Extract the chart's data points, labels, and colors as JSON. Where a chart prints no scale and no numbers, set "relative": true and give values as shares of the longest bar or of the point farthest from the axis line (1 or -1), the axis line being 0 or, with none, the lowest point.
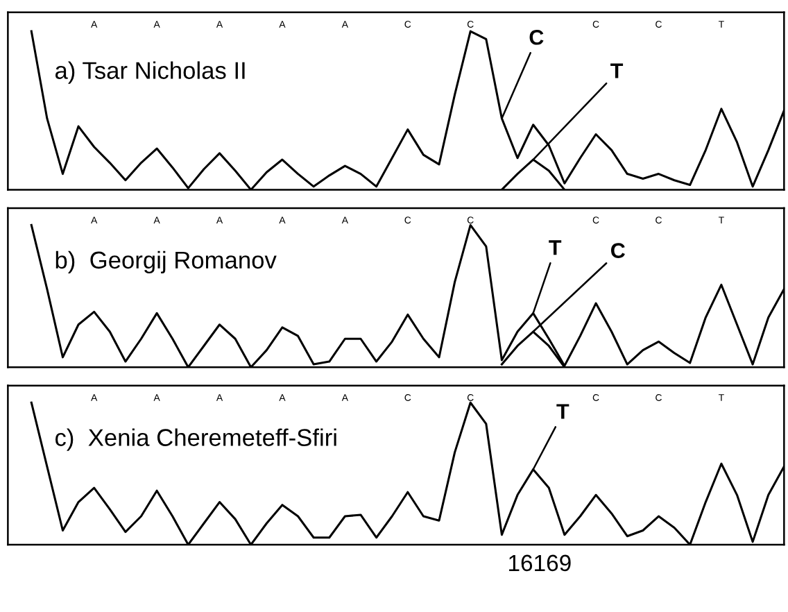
{
  "chart_data": [
    {
      "type": "line",
      "title": "a) Tsar Nicholas II",
      "relative": true,
      "tick_labels": "x",
      "grid": false,
      "legend": false,
      "categories": [
        null,
        null,
        null,
        null,
        "A",
        null,
        null,
        null,
        "A",
        null,
        null,
        null,
        "A",
        null,
        null,
        null,
        "A",
        null,
        null,
        null,
        "A",
        null,
        null,
        null,
        "C",
        null,
        null,
        null,
        "C",
        null,
        null,
        null,
        null,
        null,
        null,
        null,
        "C",
        null,
        null,
        null,
        "C",
        null,
        null,
        null,
        "T",
        null,
        null,
        null,
        null
      ],
      "series": [
        {
          "name": "C",
          "color": "#000000",
          "values": [
            1,
            0.45,
            0.1,
            0.4,
            0.27,
            0.17,
            0.06,
            0.17,
            0.26,
            0.14,
            0.01,
            0.13,
            0.23,
            0.12,
            0,
            0.11,
            0.19,
            0.1,
            0.02,
            0.09,
            0.15,
            0.1,
            0.02,
            0.2,
            0.38,
            0.22,
            0.16,
            0.6,
            1,
            0.95,
            0.45,
            0.2,
            0.41,
            0.28,
            0.04,
            0.2,
            0.35,
            0.25,
            0.1,
            0.07,
            0.1,
            0.06,
            0.03,
            0.25,
            0.51,
            0.3,
            0.02,
            0.25,
            0.5
          ]
        },
        {
          "name": "T",
          "color": "#000000",
          "values": [
            null,
            null,
            null,
            null,
            null,
            null,
            null,
            null,
            null,
            null,
            null,
            null,
            null,
            null,
            null,
            null,
            null,
            null,
            null,
            null,
            null,
            null,
            null,
            null,
            null,
            null,
            null,
            null,
            null,
            null,
            0,
            0.1,
            0.19,
            0.12,
            0,
            null,
            null,
            null,
            null,
            null,
            null,
            null,
            null,
            null,
            null,
            null,
            null,
            null,
            null
          ]
        }
      ]
    },
    {
      "type": "line",
      "title": "b)  Georgij Romanov",
      "relative": true,
      "tick_labels": "x",
      "grid": false,
      "legend": false,
      "categories": [
        null,
        null,
        null,
        null,
        "A",
        null,
        null,
        null,
        "A",
        null,
        null,
        null,
        "A",
        null,
        null,
        null,
        "A",
        null,
        null,
        null,
        "A",
        null,
        null,
        null,
        "C",
        null,
        null,
        null,
        "C",
        null,
        null,
        null,
        null,
        null,
        null,
        null,
        "C",
        null,
        null,
        null,
        "C",
        null,
        null,
        null,
        "T",
        null,
        null,
        null,
        null
      ],
      "series": [
        {
          "name": "T",
          "color": "#000000",
          "values": [
            1,
            0.55,
            0.07,
            0.3,
            0.39,
            0.25,
            0.04,
            0.2,
            0.38,
            0.2,
            0,
            0.15,
            0.3,
            0.2,
            0,
            0.12,
            0.28,
            0.22,
            0.02,
            0.04,
            0.2,
            0.2,
            0.04,
            0.18,
            0.37,
            0.2,
            0.07,
            0.6,
            1,
            0.85,
            0.05,
            0.25,
            0.38,
            0.2,
            0.01,
            0.22,
            0.45,
            0.25,
            0.02,
            0.12,
            0.18,
            0.1,
            0.03,
            0.35,
            0.58,
            0.3,
            0.02,
            0.35,
            0.55
          ]
        },
        {
          "name": "C",
          "color": "#000000",
          "values": [
            null,
            null,
            null,
            null,
            null,
            null,
            null,
            null,
            null,
            null,
            null,
            null,
            null,
            null,
            null,
            null,
            null,
            null,
            null,
            null,
            null,
            null,
            null,
            null,
            null,
            null,
            null,
            null,
            null,
            null,
            0.02,
            0.15,
            0.25,
            0.15,
            0,
            null,
            null,
            null,
            null,
            null,
            null,
            null,
            null,
            null,
            null,
            null,
            null,
            null,
            null
          ]
        }
      ]
    },
    {
      "type": "line",
      "title": "c)  Xenia Cheremeteff-Sfiri",
      "xlabel": "16169",
      "relative": true,
      "tick_labels": "x",
      "grid": false,
      "legend": false,
      "categories": [
        null,
        null,
        null,
        null,
        "A",
        null,
        null,
        null,
        "A",
        null,
        null,
        null,
        "A",
        null,
        null,
        null,
        "A",
        null,
        null,
        null,
        "A",
        null,
        null,
        null,
        "C",
        null,
        null,
        null,
        "C",
        null,
        null,
        null,
        null,
        null,
        null,
        null,
        "C",
        null,
        null,
        null,
        "C",
        null,
        null,
        null,
        "T",
        null,
        null,
        null,
        null
      ],
      "series": [
        {
          "name": "T",
          "color": "#000000",
          "values": [
            1,
            0.55,
            0.1,
            0.3,
            0.4,
            0.25,
            0.09,
            0.2,
            0.38,
            0.2,
            0,
            0.15,
            0.3,
            0.18,
            0,
            0.15,
            0.28,
            0.2,
            0.05,
            0.05,
            0.2,
            0.21,
            0.05,
            0.2,
            0.37,
            0.2,
            0.17,
            0.65,
            1,
            0.85,
            0.07,
            0.35,
            0.53,
            0.4,
            0.07,
            0.2,
            0.35,
            0.22,
            0.06,
            0.1,
            0.2,
            0.12,
            0,
            0.3,
            0.57,
            0.35,
            0.02,
            0.35,
            0.55
          ]
        }
      ]
    }
  ]
}
